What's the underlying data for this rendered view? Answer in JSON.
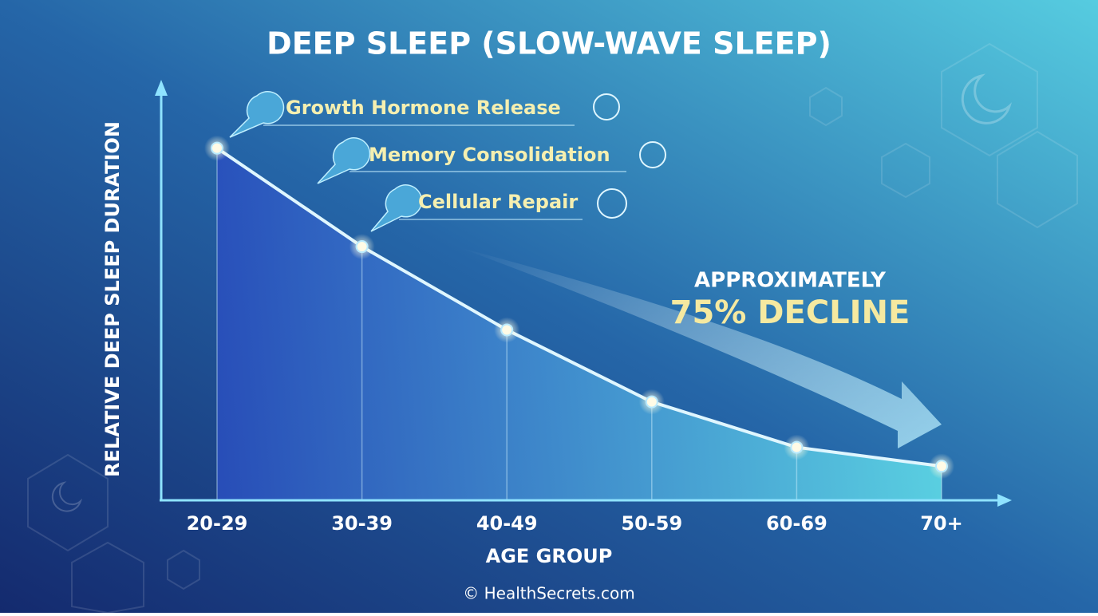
{
  "chart_data": {
    "type": "area",
    "title": "DEEP SLEEP (SLOW-WAVE SLEEP)",
    "y_label": "RELATIVE DEEP SLEEP DURATION",
    "x_label": "AGE GROUP",
    "categories": [
      "20-29",
      "30-39",
      "40-49",
      "50-59",
      "60-69",
      "70+"
    ],
    "values": [
      93,
      67,
      45,
      26,
      14,
      9
    ],
    "ylim": [
      0,
      110
    ],
    "color": "#dff6ff",
    "annotations": [
      "Growth Hormone Release",
      "Memory Consolidation",
      "Cellular Repair"
    ],
    "callout": [
      "APPROXIMATELY",
      "75% DECLINE"
    ],
    "source": "© HealthSecrets.com"
  }
}
